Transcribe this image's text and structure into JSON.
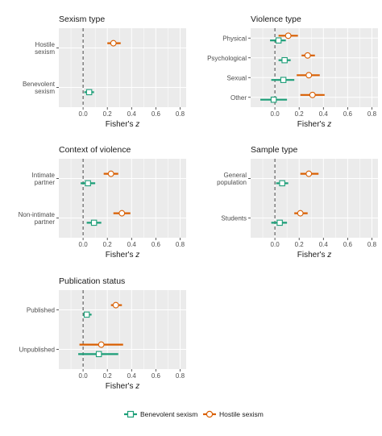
{
  "colors": {
    "benevolent": "#1b9e77",
    "hostile": "#d95f02",
    "panel_bg": "#ebebeb",
    "grid": "#ffffff",
    "zero_line": "#333333"
  },
  "chart_data": [
    {
      "type": "forest",
      "title": "Sexism type",
      "xlabel": "Fisher's",
      "xlabel_italic": "z",
      "xlim": [
        -0.2,
        0.85
      ],
      "xticks": [
        "0.0",
        "0.2",
        "0.4",
        "0.6",
        "0.8"
      ],
      "categories": [
        "Hostile\nsexism",
        "Benevolent\nsexism"
      ],
      "series": [
        {
          "name": "Hostile sexism",
          "points": [
            {
              "category": "Hostile\nsexism",
              "estimate": 0.25,
              "lower": 0.2,
              "upper": 0.31
            }
          ]
        },
        {
          "name": "Benevolent sexism",
          "points": [
            {
              "category": "Benevolent\nsexism",
              "estimate": 0.05,
              "lower": 0.01,
              "upper": 0.09
            }
          ]
        }
      ]
    },
    {
      "type": "forest",
      "title": "Violence type",
      "xlabel": "Fisher's",
      "xlabel_italic": "z",
      "xlim": [
        -0.2,
        0.85
      ],
      "xticks": [
        "0.0",
        "0.2",
        "0.4",
        "0.6",
        "0.8"
      ],
      "categories": [
        "Physical",
        "Psychological",
        "Sexual",
        "Other"
      ],
      "series": [
        {
          "name": "Hostile sexism",
          "points": [
            {
              "category": "Physical",
              "estimate": 0.11,
              "lower": 0.03,
              "upper": 0.19
            },
            {
              "category": "Psychological",
              "estimate": 0.27,
              "lower": 0.22,
              "upper": 0.33
            },
            {
              "category": "Sexual",
              "estimate": 0.28,
              "lower": 0.18,
              "upper": 0.37
            },
            {
              "category": "Other",
              "estimate": 0.31,
              "lower": 0.21,
              "upper": 0.41
            }
          ]
        },
        {
          "name": "Benevolent sexism",
          "points": [
            {
              "category": "Physical",
              "estimate": 0.03,
              "lower": -0.04,
              "upper": 0.09
            },
            {
              "category": "Psychological",
              "estimate": 0.08,
              "lower": 0.03,
              "upper": 0.13
            },
            {
              "category": "Sexual",
              "estimate": 0.07,
              "lower": -0.03,
              "upper": 0.16
            },
            {
              "category": "Other",
              "estimate": -0.01,
              "lower": -0.12,
              "upper": 0.1
            }
          ]
        }
      ]
    },
    {
      "type": "forest",
      "title": "Context of violence",
      "xlabel": "Fisher's",
      "xlabel_italic": "z",
      "xlim": [
        -0.2,
        0.85
      ],
      "xticks": [
        "0.0",
        "0.2",
        "0.4",
        "0.6",
        "0.8"
      ],
      "categories": [
        "Intimate\npartner",
        "Non-intimate\npartner"
      ],
      "series": [
        {
          "name": "Hostile sexism",
          "points": [
            {
              "category": "Intimate\npartner",
              "estimate": 0.23,
              "lower": 0.17,
              "upper": 0.29
            },
            {
              "category": "Non-intimate\npartner",
              "estimate": 0.32,
              "lower": 0.25,
              "upper": 0.39
            }
          ]
        },
        {
          "name": "Benevolent sexism",
          "points": [
            {
              "category": "Intimate\npartner",
              "estimate": 0.04,
              "lower": -0.02,
              "upper": 0.1
            },
            {
              "category": "Non-intimate\npartner",
              "estimate": 0.09,
              "lower": 0.03,
              "upper": 0.15
            }
          ]
        }
      ]
    },
    {
      "type": "forest",
      "title": "Sample type",
      "xlabel": "Fisher's",
      "xlabel_italic": "z",
      "xlim": [
        -0.2,
        0.85
      ],
      "xticks": [
        "0.0",
        "0.2",
        "0.4",
        "0.6",
        "0.8"
      ],
      "categories": [
        "General\npopulation",
        "Students"
      ],
      "series": [
        {
          "name": "Hostile sexism",
          "points": [
            {
              "category": "General\npopulation",
              "estimate": 0.28,
              "lower": 0.21,
              "upper": 0.36
            },
            {
              "category": "Students",
              "estimate": 0.21,
              "lower": 0.16,
              "upper": 0.27
            }
          ]
        },
        {
          "name": "Benevolent sexism",
          "points": [
            {
              "category": "General\npopulation",
              "estimate": 0.06,
              "lower": 0.01,
              "upper": 0.11
            },
            {
              "category": "Students",
              "estimate": 0.04,
              "lower": -0.03,
              "upper": 0.1
            }
          ]
        }
      ]
    },
    {
      "type": "forest",
      "title": "Publication status",
      "xlabel": "Fisher's",
      "xlabel_italic": "z",
      "xlim": [
        -0.2,
        0.85
      ],
      "xticks": [
        "0.0",
        "0.2",
        "0.4",
        "0.6",
        "0.8"
      ],
      "categories": [
        "Published",
        "Unpublished"
      ],
      "series": [
        {
          "name": "Hostile sexism",
          "points": [
            {
              "category": "Published",
              "estimate": 0.27,
              "lower": 0.23,
              "upper": 0.32
            },
            {
              "category": "Unpublished",
              "estimate": 0.15,
              "lower": -0.03,
              "upper": 0.33
            }
          ]
        },
        {
          "name": "Benevolent sexism",
          "points": [
            {
              "category": "Published",
              "estimate": 0.03,
              "lower": 0.0,
              "upper": 0.07
            },
            {
              "category": "Unpublished",
              "estimate": 0.13,
              "lower": -0.04,
              "upper": 0.29
            }
          ]
        }
      ]
    }
  ],
  "legend": {
    "position": "bottom",
    "items": [
      {
        "label": "Benevolent sexism",
        "series": "benevolent"
      },
      {
        "label": "Hostile sexism",
        "series": "hostile"
      }
    ]
  }
}
